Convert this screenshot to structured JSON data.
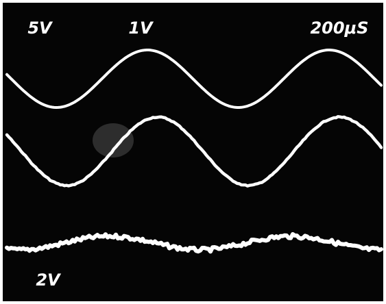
{
  "screen": {
    "top_labels": [
      "5V",
      "1V",
      "200μS"
    ],
    "bottom_label": "2V"
  }
}
